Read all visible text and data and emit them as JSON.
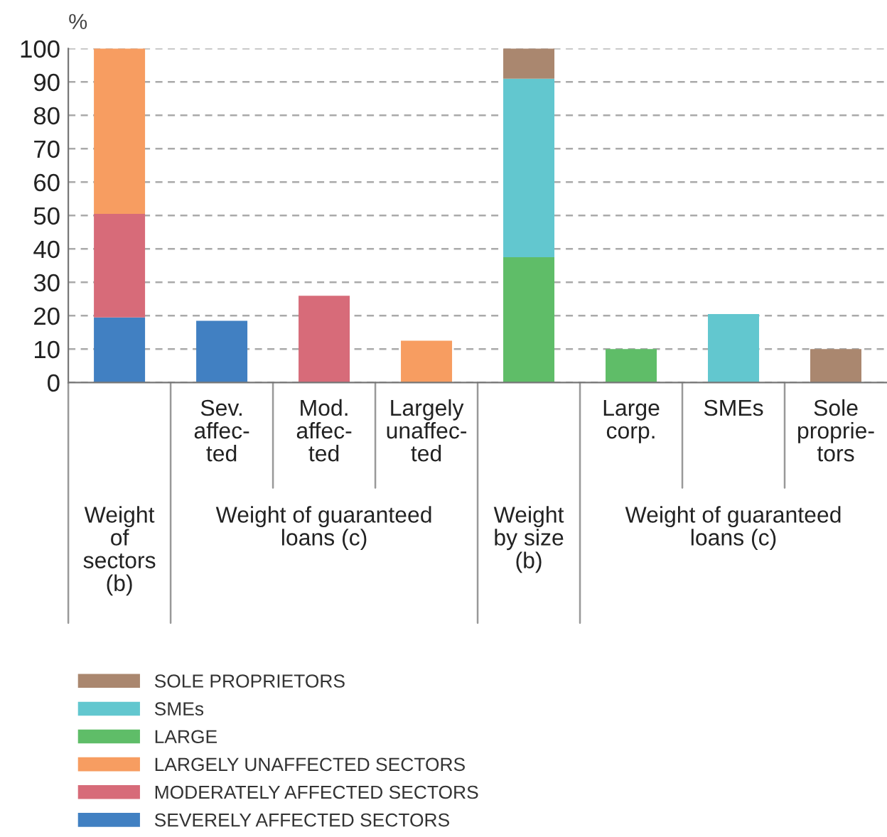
{
  "chart_data": {
    "type": "bar",
    "stacked": true,
    "ylabel": "%",
    "categories": [
      null,
      "Sev.\naffec-\nted",
      "Mod.\naffec-\nted",
      "Largely\nunaffec-\nted",
      null,
      "Large\ncorp.",
      "SMEs",
      "Sole\nproprie-\ntors"
    ],
    "series": [
      {
        "name": "SEVERELY AFFECTED SECTORS",
        "color": "#4180c2",
        "values": [
          19.5,
          18.5,
          null,
          null,
          null,
          null,
          null,
          null
        ]
      },
      {
        "name": "MODERATELY AFFECTED SECTORS",
        "color": "#d76b79",
        "values": [
          31,
          null,
          26,
          null,
          null,
          null,
          null,
          null
        ]
      },
      {
        "name": "LARGELY UNAFFECTED SECTORS",
        "color": "#f79d61",
        "values": [
          49.5,
          null,
          null,
          12.5,
          null,
          null,
          null,
          null
        ]
      },
      {
        "name": "LARGE",
        "color": "#5fbd68",
        "values": [
          null,
          null,
          null,
          null,
          37.5,
          10,
          null,
          null
        ]
      },
      {
        "name": "SMEs",
        "color": "#62c7cf",
        "values": [
          null,
          null,
          null,
          null,
          53.5,
          null,
          20.5,
          null
        ]
      },
      {
        "name": "SOLE PROPRIETORS",
        "color": "#aa876f",
        "values": [
          null,
          null,
          null,
          null,
          9,
          null,
          null,
          10
        ]
      }
    ],
    "annotations": [
      "Weight\nof\nsectors\n(b)",
      "Weight of guaranteed\nloans (c)",
      "Weight\nby size\n(b)",
      "Weight of guaranteed\nloans (c)"
    ],
    "ylim": [
      0,
      100
    ],
    "yticks": [
      0,
      10,
      20,
      30,
      40,
      50,
      60,
      70,
      80,
      90,
      100
    ],
    "grid": "y",
    "legend": "bottom"
  }
}
